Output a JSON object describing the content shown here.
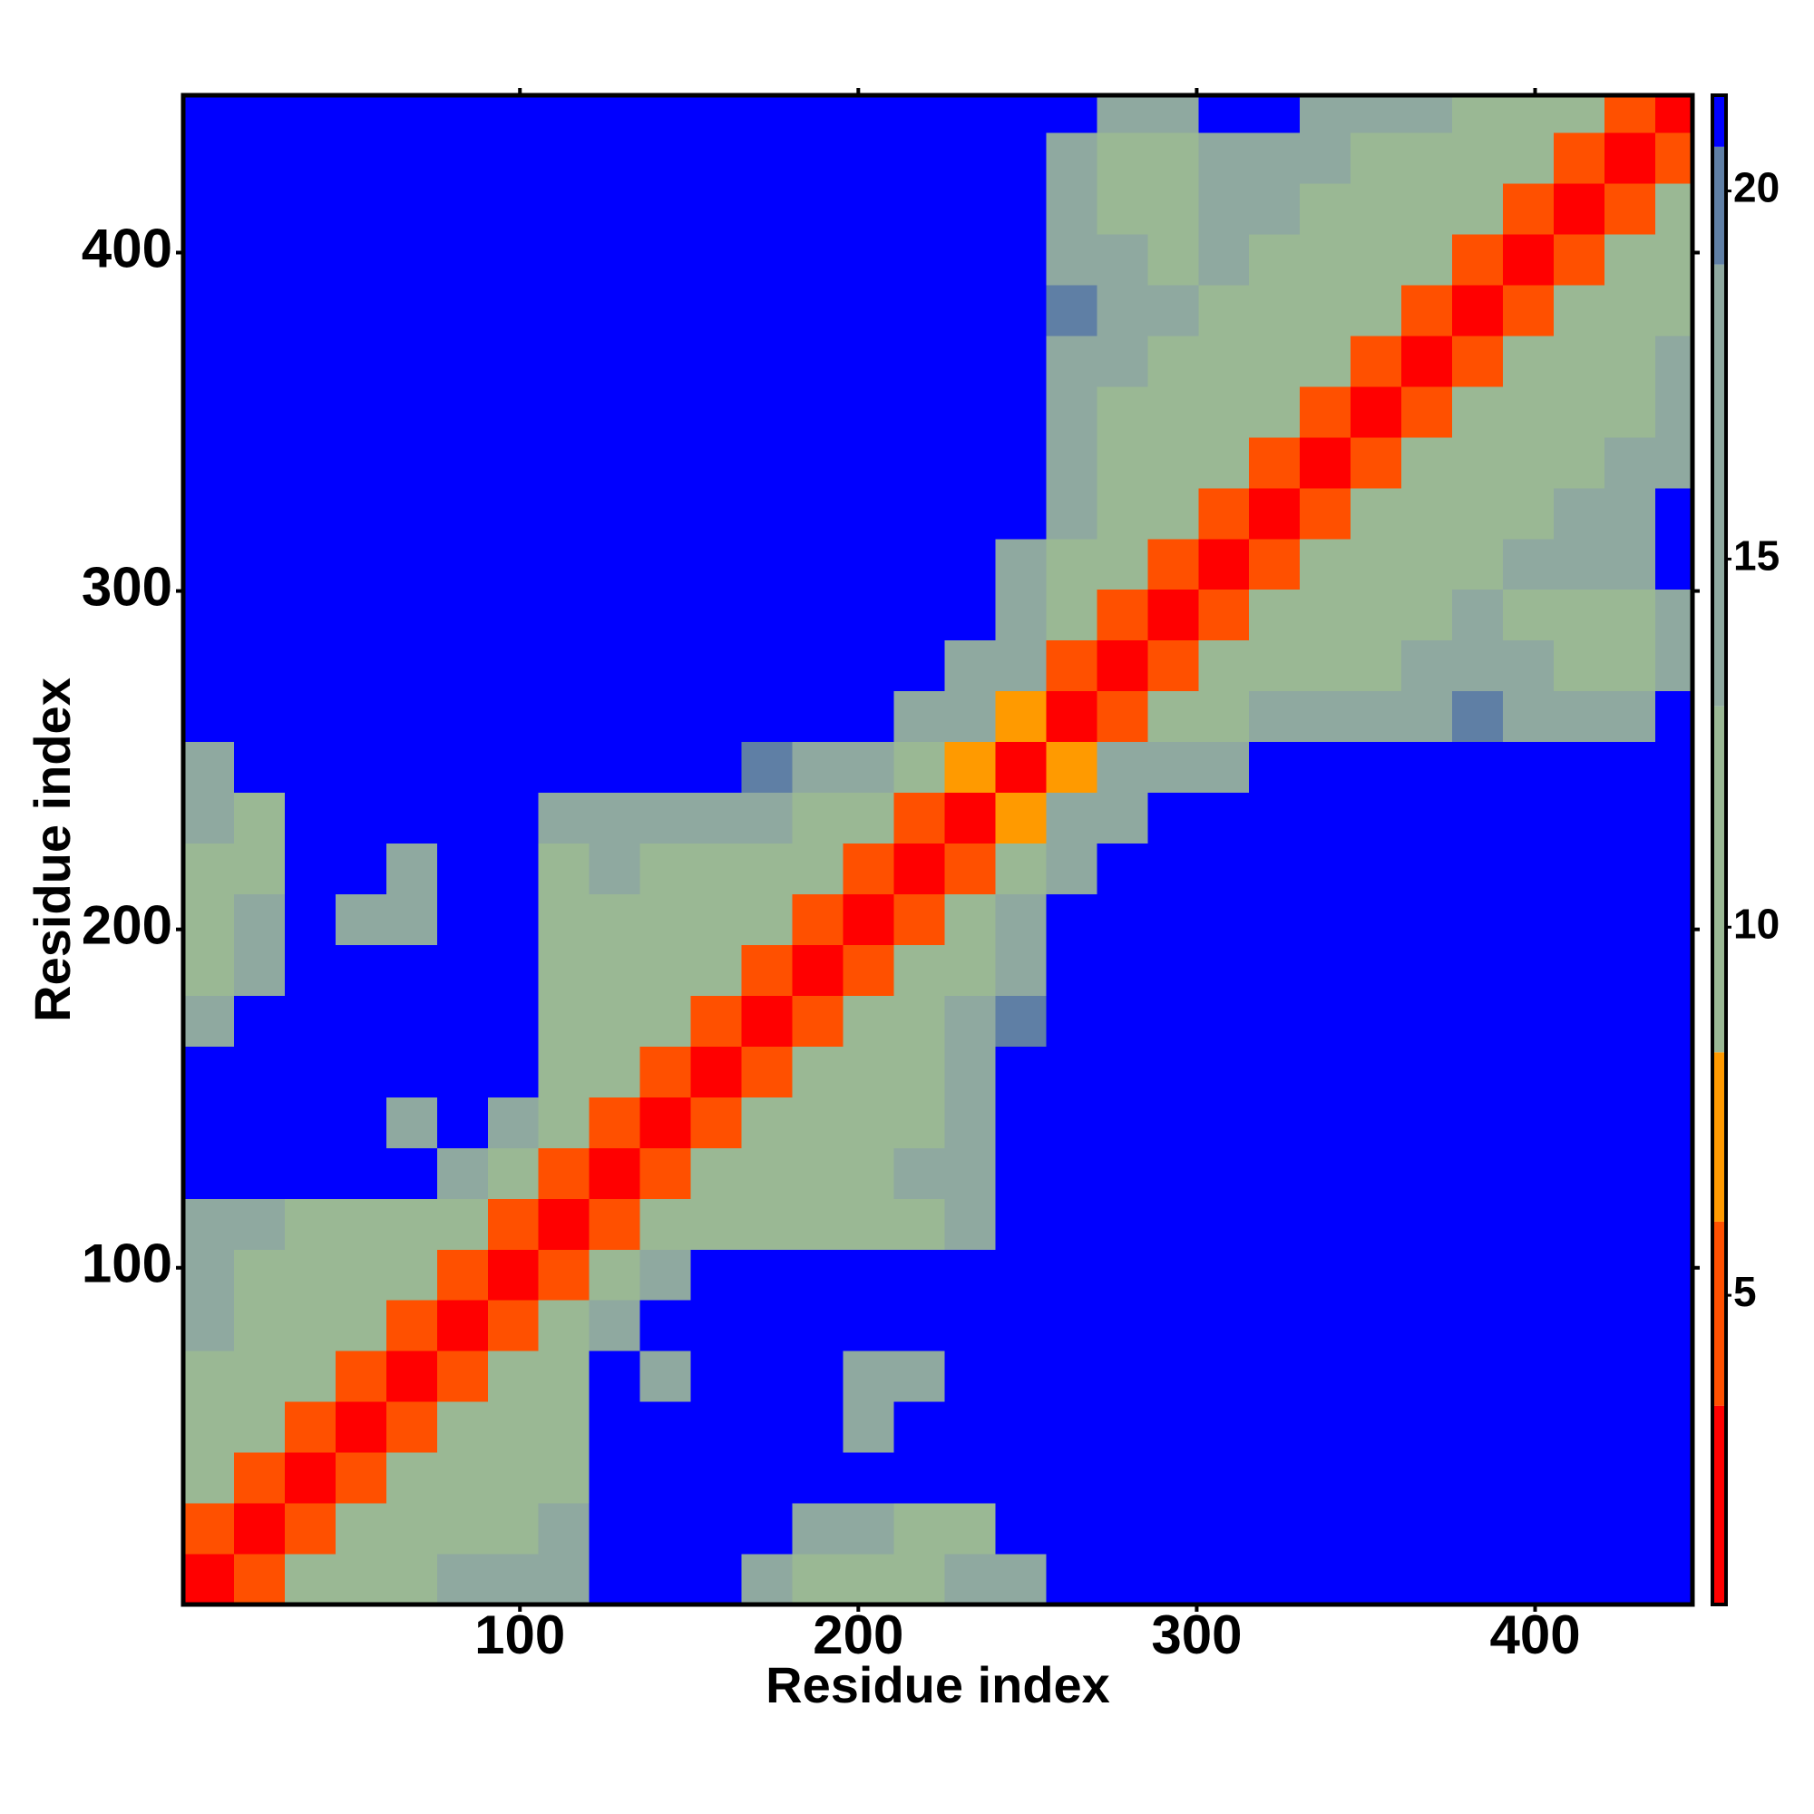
{
  "chart_data": {
    "type": "heatmap",
    "xlabel": "Residue index",
    "ylabel": "Residue index",
    "xlim": [
      0.5,
      446.5
    ],
    "ylim": [
      0.5,
      446.5
    ],
    "xticks": [
      100,
      200,
      300,
      400
    ],
    "yticks": [
      100,
      200,
      300,
      400
    ],
    "zlim": [
      0.8,
      21.3
    ],
    "zticks": [
      5,
      10,
      15,
      20
    ],
    "colorscale": [
      [
        3.5,
        "#ff0000"
      ],
      [
        6,
        "#ff5000"
      ],
      [
        8.3,
        "#ff9a00"
      ],
      [
        13,
        "#9ab894"
      ],
      [
        19,
        "#8fa9a0"
      ],
      [
        20.6,
        "#5f7fa5"
      ],
      [
        21.3,
        "#0000ff"
      ]
    ],
    "bins": [
      0.5,
      15.5,
      30.5,
      45.5,
      60.5,
      75.5,
      90.5,
      105.5,
      120.5,
      135.5,
      150.5,
      165.5,
      180.5,
      195.5,
      210.5,
      225.5,
      240.5,
      255.5,
      270.5,
      285.5,
      300.5,
      315.5,
      330.5,
      345.5,
      360.5,
      375.5,
      390.5,
      405.5,
      420.5,
      435.5,
      446.5
    ],
    "z": [
      [
        2,
        6,
        11,
        12,
        13,
        14,
        15,
        16,
        21,
        21,
        21,
        17,
        13,
        11,
        10,
        14,
        17,
        21,
        21,
        21,
        21,
        21,
        21,
        21,
        21,
        21,
        21,
        21,
        21,
        21
      ],
      [
        6,
        2,
        6,
        10,
        12,
        11,
        13,
        15,
        21,
        21,
        21,
        21,
        14,
        15,
        11,
        12,
        21,
        21,
        21,
        21,
        21,
        21,
        21,
        21,
        21,
        21,
        21,
        21,
        21,
        21
      ],
      [
        11,
        6,
        2,
        6,
        9,
        11,
        12,
        13,
        21,
        21,
        21,
        21,
        21,
        21,
        21,
        21,
        21,
        21,
        21,
        21,
        21,
        21,
        21,
        21,
        21,
        21,
        21,
        21,
        21,
        21
      ],
      [
        12,
        10,
        6,
        2,
        6,
        10,
        9,
        12,
        21,
        21,
        21,
        21,
        21,
        17,
        21,
        21,
        21,
        21,
        21,
        21,
        21,
        21,
        21,
        21,
        21,
        21,
        21,
        21,
        21,
        21
      ],
      [
        13,
        12,
        9,
        6,
        2,
        6,
        11,
        10,
        21,
        15,
        21,
        21,
        21,
        14,
        16,
        21,
        21,
        21,
        21,
        21,
        21,
        21,
        21,
        21,
        21,
        21,
        21,
        21,
        21,
        21
      ],
      [
        14,
        11,
        11,
        10,
        6,
        2,
        6,
        9,
        15,
        21,
        21,
        21,
        21,
        21,
        21,
        21,
        21,
        21,
        21,
        21,
        21,
        21,
        21,
        21,
        21,
        21,
        21,
        21,
        21,
        21
      ],
      [
        15,
        13,
        12,
        9,
        11,
        6,
        2,
        6,
        11,
        16,
        21,
        21,
        21,
        21,
        21,
        21,
        21,
        21,
        21,
        21,
        21,
        21,
        21,
        21,
        21,
        21,
        21,
        21,
        21,
        21
      ],
      [
        16,
        15,
        13,
        12,
        10,
        9,
        6,
        2,
        6,
        10,
        12,
        13,
        11,
        10,
        12,
        16,
        21,
        21,
        21,
        21,
        21,
        21,
        21,
        21,
        21,
        21,
        21,
        21,
        21,
        21
      ],
      [
        21,
        21,
        21,
        21,
        21,
        15,
        11,
        6,
        2,
        6,
        9,
        12,
        13,
        10,
        14,
        17,
        21,
        21,
        21,
        21,
        21,
        21,
        21,
        21,
        21,
        21,
        21,
        21,
        21,
        21
      ],
      [
        21,
        21,
        21,
        21,
        15,
        21,
        16,
        10,
        6,
        2,
        6,
        10,
        12,
        11,
        13,
        16,
        21,
        21,
        21,
        21,
        21,
        21,
        21,
        21,
        21,
        21,
        21,
        21,
        21,
        21
      ],
      [
        21,
        21,
        21,
        21,
        21,
        21,
        21,
        12,
        9,
        6,
        2,
        6,
        9,
        11,
        12,
        15,
        21,
        21,
        21,
        21,
        21,
        21,
        21,
        21,
        21,
        21,
        21,
        21,
        21,
        21
      ],
      [
        17,
        21,
        21,
        21,
        21,
        21,
        21,
        13,
        12,
        10,
        6,
        2,
        6,
        10,
        11,
        14,
        20,
        21,
        21,
        21,
        21,
        21,
        21,
        21,
        21,
        21,
        21,
        21,
        21,
        21
      ],
      [
        13,
        14,
        21,
        21,
        21,
        21,
        21,
        11,
        13,
        12,
        9,
        6,
        2,
        6,
        9,
        12,
        19,
        21,
        21,
        21,
        21,
        21,
        21,
        21,
        21,
        21,
        21,
        21,
        21,
        21
      ],
      [
        11,
        15,
        21,
        17,
        14,
        21,
        21,
        10,
        10,
        11,
        11,
        10,
        6,
        2,
        6,
        10,
        17,
        21,
        21,
        21,
        21,
        21,
        21,
        21,
        21,
        21,
        21,
        21,
        21,
        21
      ],
      [
        10,
        11,
        21,
        21,
        16,
        21,
        21,
        12,
        14,
        13,
        12,
        11,
        9,
        6,
        2,
        6,
        13,
        18,
        21,
        21,
        21,
        21,
        21,
        21,
        21,
        21,
        21,
        21,
        21,
        21
      ],
      [
        14,
        12,
        21,
        21,
        21,
        21,
        21,
        16,
        17,
        16,
        15,
        14,
        12,
        10,
        6,
        2,
        8,
        15,
        19,
        21,
        21,
        21,
        21,
        21,
        21,
        21,
        21,
        21,
        21,
        21
      ],
      [
        17,
        21,
        21,
        21,
        21,
        21,
        21,
        21,
        21,
        21,
        21,
        20,
        19,
        17,
        13,
        8,
        2,
        7,
        14,
        17,
        19,
        21,
        21,
        21,
        21,
        21,
        21,
        21,
        21,
        21
      ],
      [
        21,
        21,
        21,
        21,
        21,
        21,
        21,
        21,
        21,
        21,
        21,
        21,
        21,
        21,
        18,
        15,
        7,
        2,
        6,
        9,
        13,
        15,
        17,
        18,
        19,
        20,
        19,
        16,
        18,
        21
      ],
      [
        21,
        21,
        21,
        21,
        21,
        21,
        21,
        21,
        21,
        21,
        21,
        21,
        21,
        21,
        21,
        19,
        14,
        6,
        2,
        6,
        9,
        11,
        12,
        13,
        14,
        15,
        14,
        11,
        13,
        19
      ],
      [
        21,
        21,
        21,
        21,
        21,
        21,
        21,
        21,
        21,
        21,
        21,
        21,
        21,
        21,
        21,
        21,
        17,
        9,
        6,
        2,
        6,
        10,
        9,
        12,
        13,
        14,
        12,
        10,
        12,
        19
      ],
      [
        21,
        21,
        21,
        21,
        21,
        21,
        21,
        21,
        21,
        21,
        21,
        21,
        21,
        21,
        21,
        21,
        19,
        13,
        9,
        6,
        2,
        6,
        10,
        11,
        9,
        12,
        14,
        16,
        17,
        21
      ],
      [
        21,
        21,
        21,
        21,
        21,
        21,
        21,
        21,
        21,
        21,
        21,
        21,
        21,
        21,
        21,
        21,
        21,
        15,
        11,
        10,
        6,
        2,
        6,
        9,
        11,
        12,
        13,
        15,
        17,
        21
      ],
      [
        21,
        21,
        21,
        21,
        21,
        21,
        21,
        21,
        21,
        21,
        21,
        21,
        21,
        21,
        21,
        21,
        21,
        17,
        12,
        9,
        10,
        6,
        2,
        6,
        10,
        9,
        11,
        12,
        14,
        18
      ],
      [
        21,
        21,
        21,
        21,
        21,
        21,
        21,
        21,
        21,
        21,
        21,
        21,
        21,
        21,
        21,
        21,
        21,
        18,
        13,
        12,
        11,
        9,
        6,
        2,
        6,
        10,
        9,
        11,
        12,
        17
      ],
      [
        21,
        21,
        21,
        21,
        21,
        21,
        21,
        21,
        21,
        21,
        21,
        21,
        21,
        21,
        21,
        21,
        21,
        19,
        14,
        13,
        9,
        11,
        10,
        6,
        2,
        6,
        10,
        9,
        11,
        15
      ],
      [
        21,
        21,
        21,
        21,
        21,
        21,
        21,
        21,
        21,
        21,
        21,
        21,
        21,
        21,
        21,
        21,
        21,
        20,
        15,
        14,
        12,
        12,
        9,
        10,
        6,
        2,
        6,
        9,
        10,
        13
      ],
      [
        21,
        21,
        21,
        21,
        21,
        21,
        21,
        21,
        21,
        21,
        21,
        21,
        21,
        21,
        21,
        21,
        21,
        19,
        14,
        12,
        14,
        13,
        11,
        9,
        10,
        6,
        2,
        6,
        9,
        11
      ],
      [
        21,
        21,
        21,
        21,
        21,
        21,
        21,
        21,
        21,
        21,
        21,
        21,
        21,
        21,
        21,
        21,
        21,
        16,
        11,
        10,
        16,
        15,
        12,
        11,
        9,
        9,
        6,
        2,
        6,
        9
      ],
      [
        21,
        21,
        21,
        21,
        21,
        21,
        21,
        21,
        21,
        21,
        21,
        21,
        21,
        21,
        21,
        21,
        21,
        18,
        13,
        12,
        17,
        17,
        14,
        12,
        11,
        10,
        9,
        6,
        2,
        6
      ],
      [
        21,
        21,
        21,
        21,
        21,
        21,
        21,
        21,
        21,
        21,
        21,
        21,
        21,
        21,
        21,
        21,
        21,
        21,
        19,
        19,
        21,
        21,
        18,
        17,
        15,
        13,
        11,
        9,
        6,
        2
      ]
    ]
  }
}
